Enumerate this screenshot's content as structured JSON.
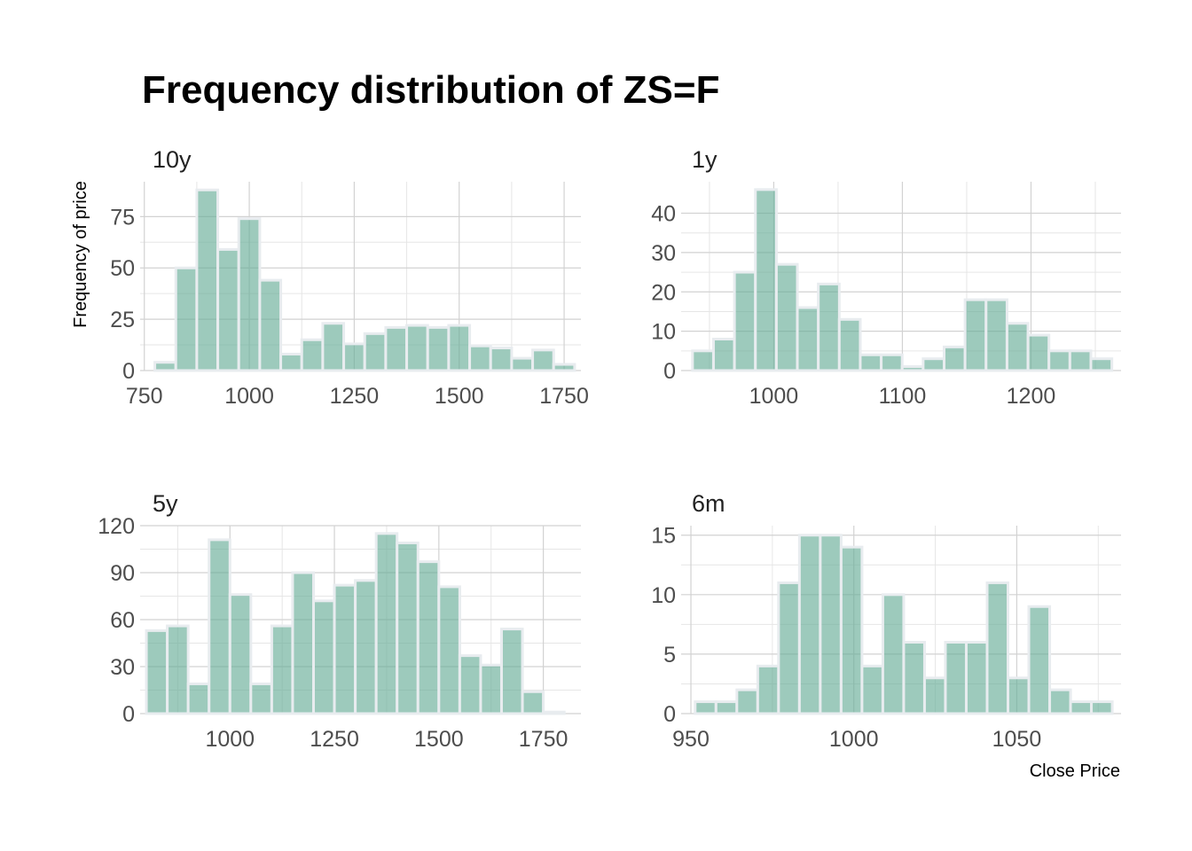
{
  "chart_data": {
    "type": "bar",
    "title": "Frequency distribution of ZS=F",
    "xlabel": "Close Price",
    "ylabel": "Frequency of price",
    "bar_color": "#69AE98",
    "bar_outline_color": "#e8ecef",
    "grid": true,
    "panels": [
      {
        "label": "10y",
        "xlim": [
          740,
          1790
        ],
        "ylim": [
          0,
          92
        ],
        "xticks": [
          750,
          1000,
          1250,
          1500,
          1750
        ],
        "yticks": [
          0,
          25,
          50,
          75
        ],
        "bin_width": 50,
        "bins": [
          {
            "x": 800,
            "count": 4
          },
          {
            "x": 850,
            "count": 50
          },
          {
            "x": 900,
            "count": 88
          },
          {
            "x": 950,
            "count": 59
          },
          {
            "x": 1000,
            "count": 74
          },
          {
            "x": 1050,
            "count": 44
          },
          {
            "x": 1100,
            "count": 8
          },
          {
            "x": 1150,
            "count": 15
          },
          {
            "x": 1200,
            "count": 23
          },
          {
            "x": 1250,
            "count": 13
          },
          {
            "x": 1300,
            "count": 18
          },
          {
            "x": 1350,
            "count": 21
          },
          {
            "x": 1400,
            "count": 22
          },
          {
            "x": 1450,
            "count": 21
          },
          {
            "x": 1500,
            "count": 22
          },
          {
            "x": 1550,
            "count": 12
          },
          {
            "x": 1600,
            "count": 11
          },
          {
            "x": 1650,
            "count": 6
          },
          {
            "x": 1700,
            "count": 10
          },
          {
            "x": 1750,
            "count": 3
          }
        ]
      },
      {
        "label": "1y",
        "xlim": [
          928,
          1270
        ],
        "ylim": [
          0,
          48
        ],
        "xticks": [
          1000,
          1100,
          1200
        ],
        "yticks": [
          0,
          10,
          20,
          30,
          40
        ],
        "bin_width": 16.3,
        "bins": [
          {
            "x": 945,
            "count": 5
          },
          {
            "x": 961.3,
            "count": 8
          },
          {
            "x": 977.6,
            "count": 25
          },
          {
            "x": 993.9,
            "count": 46
          },
          {
            "x": 1010.2,
            "count": 27
          },
          {
            "x": 1026.5,
            "count": 16
          },
          {
            "x": 1042.8,
            "count": 22
          },
          {
            "x": 1059.1,
            "count": 13
          },
          {
            "x": 1075.4,
            "count": 4
          },
          {
            "x": 1091.7,
            "count": 4
          },
          {
            "x": 1108,
            "count": 1
          },
          {
            "x": 1124.3,
            "count": 3
          },
          {
            "x": 1140.6,
            "count": 6
          },
          {
            "x": 1156.9,
            "count": 18
          },
          {
            "x": 1173.2,
            "count": 18
          },
          {
            "x": 1189.5,
            "count": 12
          },
          {
            "x": 1205.8,
            "count": 9
          },
          {
            "x": 1222.1,
            "count": 5
          },
          {
            "x": 1238.4,
            "count": 5
          },
          {
            "x": 1254.7,
            "count": 3
          }
        ]
      },
      {
        "label": "5y",
        "xlim": [
          785,
          1840
        ],
        "ylim": [
          0,
          120
        ],
        "xticks": [
          1000,
          1250,
          1500,
          1750
        ],
        "yticks": [
          0,
          30,
          60,
          90,
          120
        ],
        "bin_width": 50,
        "bins": [
          {
            "x": 825,
            "count": 53
          },
          {
            "x": 875,
            "count": 56
          },
          {
            "x": 925,
            "count": 19
          },
          {
            "x": 975,
            "count": 111
          },
          {
            "x": 1025,
            "count": 76
          },
          {
            "x": 1075,
            "count": 19
          },
          {
            "x": 1125,
            "count": 56
          },
          {
            "x": 1175,
            "count": 90
          },
          {
            "x": 1225,
            "count": 72
          },
          {
            "x": 1275,
            "count": 82
          },
          {
            "x": 1325,
            "count": 85
          },
          {
            "x": 1375,
            "count": 115
          },
          {
            "x": 1425,
            "count": 109
          },
          {
            "x": 1475,
            "count": 97
          },
          {
            "x": 1525,
            "count": 81
          },
          {
            "x": 1575,
            "count": 37
          },
          {
            "x": 1625,
            "count": 31
          },
          {
            "x": 1675,
            "count": 54
          },
          {
            "x": 1725,
            "count": 14
          },
          {
            "x": 1775,
            "count": 1
          }
        ]
      },
      {
        "label": "6m",
        "xlim": [
          947,
          1082
        ],
        "ylim": [
          0,
          15.8
        ],
        "xticks": [
          950,
          1000,
          1050
        ],
        "yticks": [
          0,
          5,
          10,
          15
        ],
        "bin_width": 6.4,
        "bins": [
          {
            "x": 954.5,
            "count": 1
          },
          {
            "x": 960.9,
            "count": 1
          },
          {
            "x": 967.3,
            "count": 2
          },
          {
            "x": 973.7,
            "count": 4
          },
          {
            "x": 980.1,
            "count": 11
          },
          {
            "x": 986.5,
            "count": 15
          },
          {
            "x": 992.9,
            "count": 15
          },
          {
            "x": 999.3,
            "count": 14
          },
          {
            "x": 1005.7,
            "count": 4
          },
          {
            "x": 1012.1,
            "count": 10
          },
          {
            "x": 1018.5,
            "count": 6
          },
          {
            "x": 1024.9,
            "count": 3
          },
          {
            "x": 1031.3,
            "count": 6
          },
          {
            "x": 1037.7,
            "count": 6
          },
          {
            "x": 1044.1,
            "count": 11
          },
          {
            "x": 1050.5,
            "count": 3
          },
          {
            "x": 1056.9,
            "count": 9
          },
          {
            "x": 1063.3,
            "count": 2
          },
          {
            "x": 1069.7,
            "count": 1
          },
          {
            "x": 1076.1,
            "count": 1
          }
        ]
      }
    ]
  }
}
